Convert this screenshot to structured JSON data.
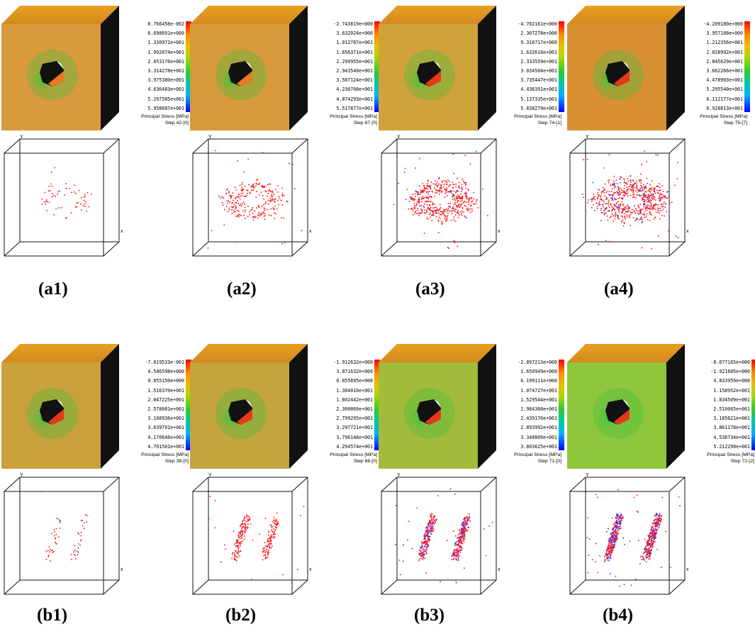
{
  "legend_title": "Principal Stress [MPa]",
  "panels": [
    {
      "id": "a1",
      "caption": "(a1)",
      "step": "Step 42-[0]",
      "cube_color": "#d99a3c",
      "ticks": [
        "8.766458e-002",
        "6.698691e+000",
        "1.330971e+001",
        "1.992074e+001",
        "2.653176e+001",
        "3.314278e+001",
        "3.975380e+001",
        "4.636483e+001",
        "5.297585e+001",
        "5.958687e+001"
      ]
    },
    {
      "id": "a2",
      "caption": "(a2)",
      "step": "Step 67-[0]",
      "cube_color": "#d79a3a",
      "ticks": [
        "-2.743819e+000",
        "3.632024e+000",
        "1.012787e+001",
        "1.656371e+001",
        "2.299955e+001",
        "2.943540e+001",
        "3.587124e+001",
        "4.230708e+001",
        "4.874293e+001",
        "5.517877e+001"
      ]
    },
    {
      "id": "a3",
      "caption": "(a3)",
      "step": "Step 74-[1]",
      "cube_color": "#cfa23a",
      "ticks": [
        "-4.702161e+000",
        "2.307278e+000",
        "9.316717e+000",
        "1.632616e+001",
        "2.333559e+001",
        "3.034504e+001",
        "3.735447e+001",
        "4.436391e+001",
        "5.137335e+001",
        "5.838279e+001"
      ]
    },
    {
      "id": "a4",
      "caption": "(a4)",
      "step": "Step 75-[7]",
      "cube_color": "#d99032",
      "ticks": [
        "-4.209180e+000",
        "3.957188e+000",
        "1.212356e+001",
        "2.028992e+001",
        "2.845629e+001",
        "3.662266e+001",
        "4.478903e+001",
        "5.295540e+001",
        "6.112177e+001",
        "6.928813e+001"
      ]
    },
    {
      "id": "b1",
      "caption": "(b1)",
      "step": "Step 38-[0]",
      "cube_color": "#c9a03a",
      "ticks": [
        "-7.619533e-001",
        "4.546598e+000",
        "9.855150e+000",
        "1.516370e+001",
        "2.047225e+001",
        "2.578081e+001",
        "3.108936e+001",
        "3.639791e+001",
        "4.170646e+001",
        "4.701501e+001"
      ]
    },
    {
      "id": "b2",
      "caption": "(b2)",
      "step": "Step 66-[0]",
      "cube_color": "#c4a43c",
      "ticks": [
        "-1.912632e+000",
        "3.071632e+000",
        "8.055895e+000",
        "1.304016e+001",
        "1.802442e+001",
        "2.300869e+001",
        "2.799295e+001",
        "3.297721e+001",
        "3.796148e+001",
        "4.294574e+001"
      ]
    },
    {
      "id": "b3",
      "caption": "(b3)",
      "step": "Step 71-[0]",
      "cube_color": "#a3bb3a",
      "ticks": [
        "-2.897213e+000",
        "1.650949e+000",
        "6.199111e+000",
        "1.074727e+001",
        "1.529544e+001",
        "1.984360e+001",
        "2.439176e+001",
        "2.893992e+001",
        "3.348809e+001",
        "3.803625e+001"
      ]
    },
    {
      "id": "b4",
      "caption": "(b4)",
      "step": "Step 72-[2]",
      "cube_color": "#8fc63c",
      "ticks": [
        "-8.677165e+000",
        "-1.921605e+000",
        "4.833959e+000",
        "1.158952e+001",
        "1.834509e+001",
        "2.510065e+001",
        "3.185621e+001",
        "3.861178e+001",
        "4.536734e+001",
        "5.212290e+001"
      ]
    }
  ]
}
